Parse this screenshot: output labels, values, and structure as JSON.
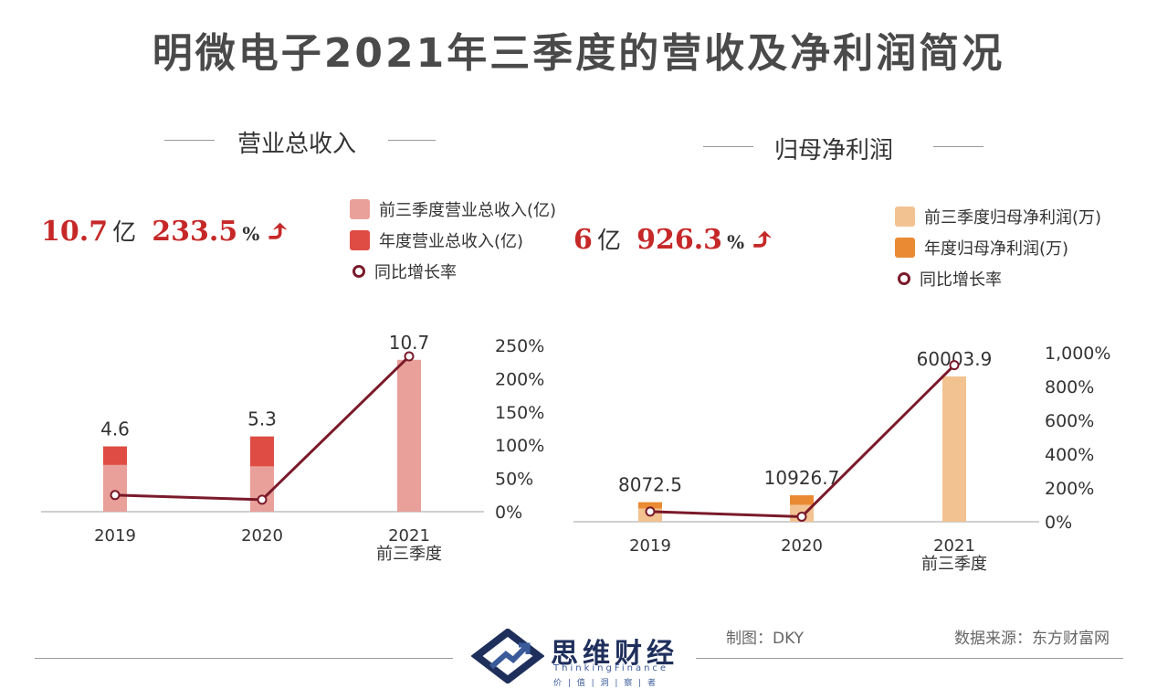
{
  "title": "明微电子2021年三季度的营收及净利润简况",
  "left": {
    "panel_title": "营业总收入",
    "headline": {
      "value": "10.7",
      "unit": "亿",
      "growth": "233.5",
      "pct": "%",
      "arrow": "⤴"
    },
    "legend": [
      "前三季度营业总收入(亿)",
      "年度营业总收入(亿)",
      "同比增长率"
    ]
  },
  "right": {
    "panel_title": "归母净利润",
    "headline": {
      "value": "6",
      "unit": "亿",
      "growth": "926.3",
      "pct": "%",
      "arrow": "⤴"
    },
    "legend": [
      "前三季度归母净利润(万)",
      "年度归母净利润(万)",
      "同比增长率"
    ]
  },
  "chart_data": [
    {
      "type": "bar",
      "title": "营业总收入",
      "categories": [
        "2019",
        "2020",
        "2021\n前三季度"
      ],
      "series": [
        {
          "name": "前三季度营业总收入(亿)",
          "values": [
            3.3,
            3.2,
            10.7
          ]
        },
        {
          "name": "年度营业总收入(亿)",
          "values": [
            4.6,
            5.3,
            null
          ]
        }
      ],
      "data_labels": [
        "4.6",
        "5.3",
        "10.7"
      ],
      "line": {
        "name": "同比增长率",
        "values": [
          25,
          18,
          233.5
        ]
      },
      "y2_ticks": [
        "0%",
        "50%",
        "100%",
        "150%",
        "200%",
        "250%"
      ],
      "y2lim": [
        0,
        250
      ],
      "ylim": [
        0,
        11.2
      ],
      "colors": {
        "quarter": "#e9a09a",
        "annual": "#de4c43",
        "line": "#7a1a2a"
      }
    },
    {
      "type": "bar",
      "title": "归母净利润",
      "categories": [
        "2019",
        "2020",
        "2021\n前三季度"
      ],
      "series": [
        {
          "name": "前三季度归母净利润(万)",
          "values": [
            5500,
            7000,
            60003.9
          ]
        },
        {
          "name": "年度归母净利润(万)",
          "values": [
            8072.5,
            10926.7,
            null
          ]
        }
      ],
      "data_labels": [
        "8072.5",
        "10926.7",
        "60003.9"
      ],
      "line": {
        "name": "同比增长率",
        "values": [
          60,
          30,
          926.3
        ]
      },
      "y2_ticks": [
        "0%",
        "200%",
        "400%",
        "600%",
        "800%",
        "1,000%"
      ],
      "y2lim": [
        0,
        1000
      ],
      "ylim": [
        0,
        61500
      ],
      "colors": {
        "quarter": "#f2c291",
        "annual": "#ea8a33",
        "line": "#7a1a2a"
      }
    }
  ],
  "footer": {
    "author": "制图：DKY",
    "source": "数据来源：东方财富网",
    "logo_cn": "思维财经",
    "logo_en": "ThinkingFinance",
    "logo_motto": "价 | 值 | 洞 | 察 | 者"
  }
}
